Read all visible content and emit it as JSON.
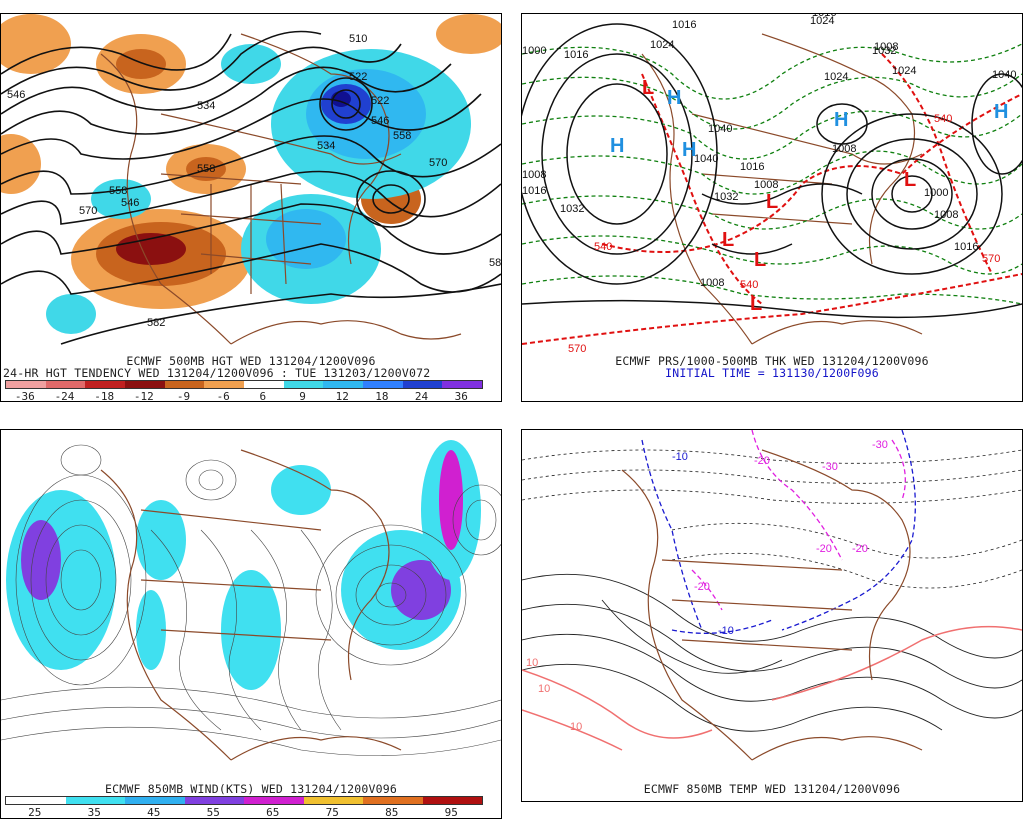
{
  "panels": {
    "p500": {
      "line1": "ECMWF 500MB HGT WED 131204/1200V096",
      "line2": "24-HR HGT TENDENCY WED 131204/1200V096 : TUE 131203/1200V072",
      "colorbar": {
        "labels": [
          "-36",
          "-24",
          "-18",
          "-12",
          "-9",
          "-6",
          "6",
          "9",
          "12",
          "18",
          "24",
          "36"
        ],
        "colors": [
          "#f0a0a0",
          "#e06a6a",
          "#c02020",
          "#8b1010",
          "#c8641e",
          "#f0a050",
          "#ffffff",
          "#40d8e8",
          "#30b8f0",
          "#3080ff",
          "#2040d0",
          "#8030e0"
        ]
      },
      "contour_labels": [
        "510",
        "522",
        "534",
        "546",
        "558",
        "570",
        "582",
        "546",
        "558",
        "570",
        "582",
        "534",
        "546",
        "558",
        "522"
      ]
    },
    "pmslp": {
      "line1": "ECMWF PRS/1000-500MB THK WED 131204/1200V096",
      "line2": "INITIAL TIME = 131130/1200F096",
      "pressure_labels": [
        "1024",
        "1016",
        "1024",
        "1016",
        "1032",
        "1040",
        "1040",
        "1032",
        "1024",
        "1016",
        "1008",
        "1000",
        "1008",
        "1016",
        "1032",
        "1008",
        "1008",
        "1024",
        "1008",
        "1016",
        "1000",
        "1008",
        "1016",
        "1040"
      ],
      "thickness_labels": [
        "540",
        "570",
        "540",
        "570",
        "540"
      ],
      "high_label": "H",
      "low_label": "L"
    },
    "p850wind": {
      "line1": "ECMWF 850MB WIND(KTS) WED 131204/1200V096",
      "colorbar": {
        "labels": [
          "25",
          "35",
          "45",
          "55",
          "65",
          "75",
          "85",
          "95"
        ],
        "colors": [
          "#ffffff",
          "#40e0f0",
          "#30b0f0",
          "#8040e0",
          "#d020d0",
          "#f0c030",
          "#e07020",
          "#b01010"
        ]
      }
    },
    "p850temp": {
      "line1": "ECMWF 850MB TEMP WED 131204/1200V096",
      "temp_labels": [
        "-30",
        "-20",
        "-10",
        "-20",
        "-30",
        "-20",
        "-10",
        "10",
        "10",
        "-20",
        "10"
      ]
    }
  },
  "colors": {
    "contour": "#111111",
    "coast": "#8b4a2a",
    "thickness_red": "#e01010",
    "thickness_green": "#108010",
    "high_blue": "#2090e0",
    "low_red": "#e01010",
    "temp_blue": "#1a1ad0",
    "temp_magenta": "#e020e0",
    "temp_pink": "#f07070"
  }
}
